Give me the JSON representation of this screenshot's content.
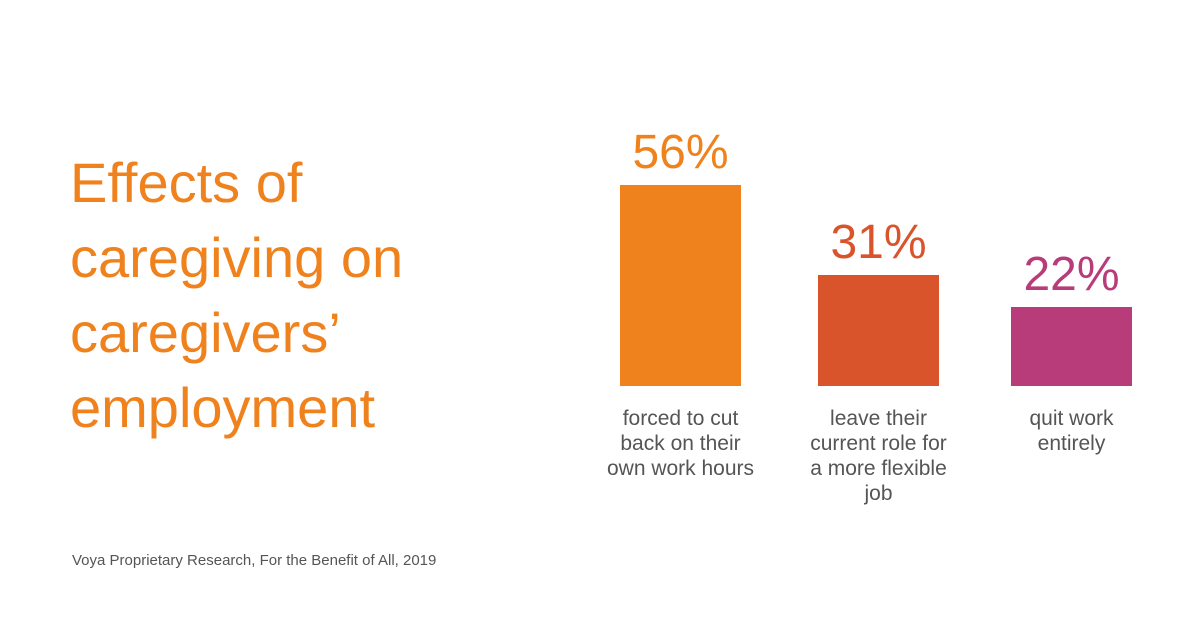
{
  "chart_data": {
    "type": "bar",
    "title": "Effects of caregiving on caregivers’ employment",
    "categories": [
      "forced to cut back on their own work hours",
      "leave their current role for a more flexible job",
      "quit work entirely"
    ],
    "values": [
      56,
      31,
      22
    ],
    "value_labels": [
      "56%",
      "31%",
      "22%"
    ],
    "colors": [
      "#f0821e",
      "#d9542a",
      "#b83c7a"
    ],
    "source": "Voya Proprietary Research, For the Benefit of All, 2019"
  }
}
